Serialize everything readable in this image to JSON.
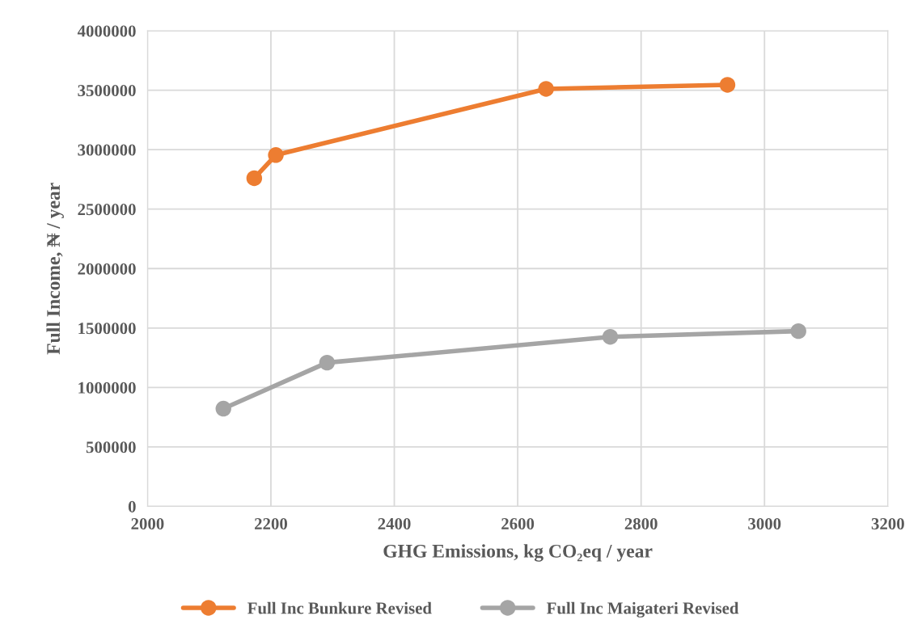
{
  "chart_data": {
    "type": "line",
    "xlabel": "GHG Emissions, kg CO₂eq / year",
    "ylabel": "Full Income, ₦ / year",
    "series": [
      {
        "name": "Full Inc Bunkure Revised",
        "color": "#ed7d31",
        "x": [
          2173,
          2208,
          2646,
          2940
        ],
        "values": [
          2760000,
          2955000,
          3511000,
          3545000
        ]
      },
      {
        "name": "Full Inc Maigateri Revised",
        "color": "#a5a5a5",
        "x": [
          2123,
          2291,
          2750,
          3055
        ],
        "values": [
          822000,
          1209000,
          1426000,
          1474000
        ]
      }
    ],
    "xlim": [
      2000,
      3200
    ],
    "xticks": [
      2000,
      2200,
      2400,
      2600,
      2800,
      3000,
      3200
    ],
    "ylim": [
      0,
      4000000
    ],
    "yticks": [
      0,
      500000,
      1000000,
      1500000,
      2000000,
      2500000,
      3000000,
      3500000,
      4000000
    ],
    "grid": true,
    "legend": "bottom",
    "marker": "circle",
    "line_style": "solid"
  }
}
